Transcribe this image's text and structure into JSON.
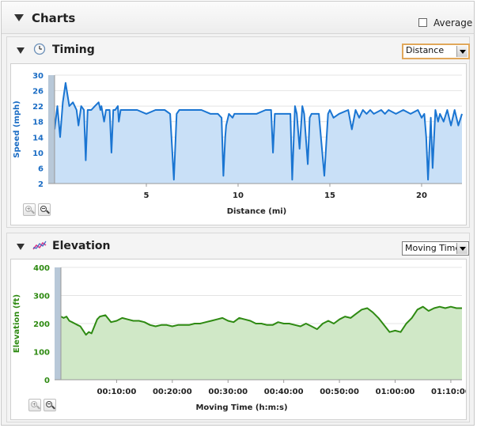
{
  "header": {
    "title": "Charts",
    "average_label": "Average",
    "average_checked": false
  },
  "timing": {
    "title": "Timing",
    "dropdown": "Distance",
    "chart_data": {
      "type": "area",
      "xlabel": "Distance (mi)",
      "ylabel": "Speed (mph)",
      "xlim": [
        0,
        22.2
      ],
      "ylim": [
        2,
        30
      ],
      "xticks": [
        5,
        10,
        15,
        20
      ],
      "yticks": [
        2,
        6,
        10,
        14,
        18,
        22,
        26,
        30
      ],
      "line_color": "#1a75d2",
      "fill_color": "#c9e0f7",
      "series": [
        {
          "x": [
            0,
            0.15,
            0.3,
            0.45,
            0.6,
            0.8,
            1.0,
            1.2,
            1.3,
            1.45,
            1.6,
            1.7,
            1.8,
            2.0,
            2.2,
            2.4,
            2.5,
            2.55,
            2.7,
            2.8,
            3.0,
            3.1,
            3.2,
            3.3,
            3.45,
            3.5,
            3.6,
            3.8,
            4.0,
            4.5,
            5.0,
            5.5,
            6.0,
            6.3,
            6.5,
            6.65,
            6.8,
            7.0,
            7.5,
            8.0,
            8.5,
            8.9,
            9.1,
            9.2,
            9.3,
            9.35,
            9.5,
            9.7,
            9.8,
            10.0,
            10.5,
            11.0,
            11.5,
            11.8,
            11.9,
            12.0,
            12.2,
            12.6,
            12.85,
            12.95,
            13.1,
            13.2,
            13.35,
            13.5,
            13.6,
            13.8,
            13.9,
            14.0,
            14.2,
            14.4,
            14.7,
            14.9,
            15.0,
            15.2,
            15.5,
            16.0,
            16.2,
            16.4,
            16.6,
            16.8,
            17.0,
            17.2,
            17.4,
            17.8,
            18.0,
            18.2,
            18.6,
            19.0,
            19.4,
            19.8,
            20.0,
            20.15,
            20.25,
            20.35,
            20.5,
            20.6,
            20.75,
            20.9,
            21.0,
            21.2,
            21.4,
            21.6,
            21.8,
            22.0,
            22.2
          ],
          "y": [
            16,
            22,
            14,
            23,
            28,
            22,
            23,
            21,
            17,
            22,
            21,
            8,
            21,
            21,
            22,
            23,
            21,
            22,
            18,
            21,
            21,
            10,
            21,
            21,
            22,
            18,
            21,
            21,
            21,
            21,
            20,
            21,
            21,
            20,
            3,
            20,
            21,
            21,
            21,
            21,
            20,
            20,
            19,
            4,
            14,
            17,
            20,
            19,
            20,
            20,
            20,
            20,
            21,
            21,
            10,
            20,
            20,
            20,
            20,
            3,
            22,
            20,
            11,
            22,
            20,
            7,
            19,
            20,
            20,
            20,
            4,
            20,
            21,
            19,
            20,
            21,
            16,
            21,
            19,
            21,
            20,
            21,
            20,
            21,
            20,
            21,
            20,
            21,
            20,
            21,
            19,
            20,
            14,
            3,
            19,
            6,
            21,
            18,
            20,
            18,
            21,
            17,
            21,
            17,
            20
          ]
        }
      ]
    }
  },
  "elevation": {
    "title": "Elevation",
    "dropdown": "Moving Time",
    "chart_data": {
      "type": "area",
      "xlabel": "Moving Time (h:m:s)",
      "ylabel": "Elevation (ft)",
      "xlim": [
        0,
        72
      ],
      "ylim": [
        0,
        400
      ],
      "xticks": [
        10,
        20,
        30,
        40,
        50,
        60,
        70
      ],
      "xtick_labels": [
        "00:10:00",
        "00:20:00",
        "00:30:00",
        "00:40:00",
        "00:50:00",
        "01:00:00",
        "01:10:00"
      ],
      "yticks": [
        0,
        100,
        200,
        300,
        400
      ],
      "line_color": "#2e8a12",
      "fill_color": "#d0e8c7",
      "series": [
        {
          "x": [
            0,
            0.5,
            1,
            1.5,
            2,
            2.5,
            3,
            3.5,
            4,
            4.5,
            5,
            5.5,
            6,
            6.5,
            7,
            8,
            9,
            10,
            11,
            12,
            13,
            14,
            15,
            16,
            17,
            18,
            19,
            20,
            21,
            22,
            23,
            24,
            25,
            26,
            27,
            28,
            29,
            30,
            31,
            32,
            33,
            34,
            35,
            36,
            37,
            38,
            39,
            40,
            41,
            42,
            43,
            44,
            45,
            46,
            47,
            48,
            49,
            50,
            51,
            52,
            53,
            54,
            55,
            56,
            57,
            58,
            59,
            60,
            61,
            62,
            63,
            64,
            65,
            66,
            67,
            68,
            69,
            70,
            71,
            72
          ],
          "y": [
            225,
            220,
            225,
            210,
            205,
            200,
            195,
            190,
            175,
            160,
            170,
            165,
            190,
            215,
            225,
            230,
            205,
            210,
            220,
            215,
            210,
            210,
            205,
            195,
            190,
            195,
            195,
            190,
            195,
            195,
            195,
            200,
            200,
            205,
            210,
            215,
            220,
            210,
            205,
            220,
            215,
            210,
            200,
            200,
            195,
            195,
            205,
            200,
            200,
            195,
            190,
            200,
            190,
            180,
            200,
            210,
            200,
            215,
            225,
            220,
            235,
            250,
            255,
            240,
            220,
            195,
            170,
            175,
            170,
            200,
            220,
            250,
            260,
            245,
            255,
            260,
            255,
            260,
            255,
            255
          ]
        }
      ]
    }
  }
}
